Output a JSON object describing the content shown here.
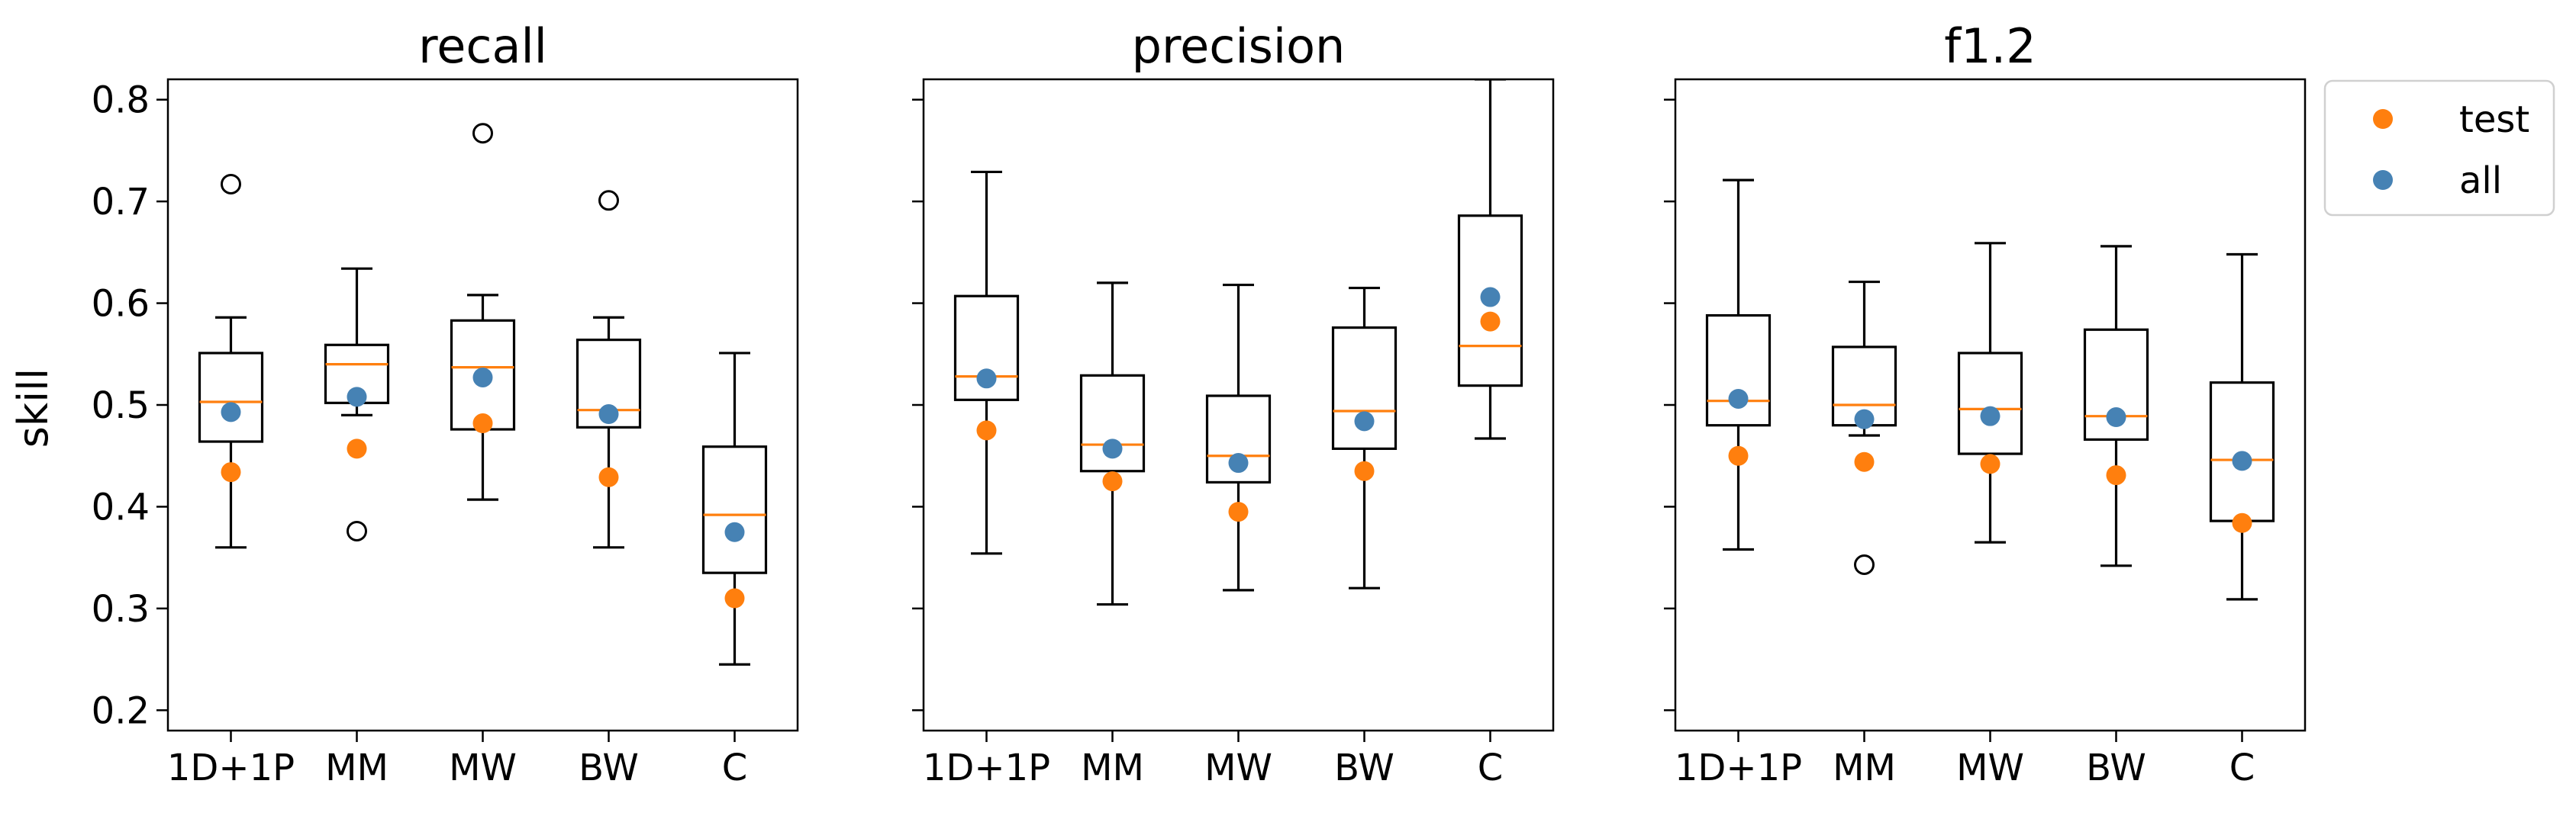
{
  "figure": {
    "ylabel": "skill",
    "legend": {
      "placement": "outside-top-right",
      "entries": [
        {
          "label": "test",
          "color": "#ff7f0e"
        },
        {
          "label": "all",
          "color": "#4682b4"
        }
      ]
    }
  },
  "chart_data": [
    {
      "type": "box",
      "title": "recall",
      "categories": [
        "1D+1P",
        "MM",
        "MW",
        "BW",
        "C"
      ],
      "ylim": [
        0.18,
        0.82
      ],
      "yticks": [
        0.2,
        0.3,
        0.4,
        0.5,
        0.6,
        0.7,
        0.8
      ],
      "boxes": [
        {
          "whislo": 0.36,
          "q1": 0.464,
          "med": 0.503,
          "q3": 0.551,
          "whishi": 0.586,
          "fliers": [
            0.717
          ]
        },
        {
          "whislo": 0.49,
          "q1": 0.502,
          "med": 0.54,
          "q3": 0.559,
          "whishi": 0.634,
          "fliers": [
            0.376
          ]
        },
        {
          "whislo": 0.407,
          "q1": 0.476,
          "med": 0.537,
          "q3": 0.583,
          "whishi": 0.608,
          "fliers": [
            0.767
          ]
        },
        {
          "whislo": 0.36,
          "q1": 0.478,
          "med": 0.495,
          "q3": 0.564,
          "whishi": 0.586,
          "fliers": [
            0.701
          ]
        },
        {
          "whislo": 0.245,
          "q1": 0.335,
          "med": 0.392,
          "q3": 0.459,
          "whishi": 0.551,
          "fliers": []
        }
      ],
      "series": [
        {
          "name": "test",
          "values": [
            0.434,
            0.457,
            0.482,
            0.429,
            0.31
          ]
        },
        {
          "name": "all",
          "values": [
            0.493,
            0.508,
            0.527,
            0.491,
            0.375
          ]
        }
      ]
    },
    {
      "type": "box",
      "title": "precision",
      "categories": [
        "1D+1P",
        "MM",
        "MW",
        "BW",
        "C"
      ],
      "ylim": [
        0.18,
        0.82
      ],
      "yticks": [
        0.2,
        0.3,
        0.4,
        0.5,
        0.6,
        0.7,
        0.8
      ],
      "boxes": [
        {
          "whislo": 0.354,
          "q1": 0.505,
          "med": 0.528,
          "q3": 0.607,
          "whishi": 0.729,
          "fliers": []
        },
        {
          "whislo": 0.304,
          "q1": 0.435,
          "med": 0.461,
          "q3": 0.529,
          "whishi": 0.62,
          "fliers": []
        },
        {
          "whislo": 0.318,
          "q1": 0.424,
          "med": 0.45,
          "q3": 0.509,
          "whishi": 0.618,
          "fliers": []
        },
        {
          "whislo": 0.32,
          "q1": 0.457,
          "med": 0.494,
          "q3": 0.576,
          "whishi": 0.615,
          "fliers": []
        },
        {
          "whislo": 0.467,
          "q1": 0.519,
          "med": 0.558,
          "q3": 0.686,
          "whishi": 0.82,
          "fliers": []
        }
      ],
      "series": [
        {
          "name": "test",
          "values": [
            0.475,
            0.425,
            0.395,
            0.435,
            0.582
          ]
        },
        {
          "name": "all",
          "values": [
            0.526,
            0.457,
            0.443,
            0.484,
            0.606
          ]
        }
      ]
    },
    {
      "type": "box",
      "title": "f1.2",
      "categories": [
        "1D+1P",
        "MM",
        "MW",
        "BW",
        "C"
      ],
      "ylim": [
        0.18,
        0.82
      ],
      "yticks": [
        0.2,
        0.3,
        0.4,
        0.5,
        0.6,
        0.7,
        0.8
      ],
      "boxes": [
        {
          "whislo": 0.358,
          "q1": 0.48,
          "med": 0.504,
          "q3": 0.588,
          "whishi": 0.721,
          "fliers": []
        },
        {
          "whislo": 0.47,
          "q1": 0.48,
          "med": 0.5,
          "q3": 0.557,
          "whishi": 0.621,
          "fliers": [
            0.343
          ]
        },
        {
          "whislo": 0.365,
          "q1": 0.452,
          "med": 0.496,
          "q3": 0.551,
          "whishi": 0.659,
          "fliers": []
        },
        {
          "whislo": 0.342,
          "q1": 0.466,
          "med": 0.489,
          "q3": 0.574,
          "whishi": 0.656,
          "fliers": []
        },
        {
          "whislo": 0.309,
          "q1": 0.386,
          "med": 0.446,
          "q3": 0.522,
          "whishi": 0.648,
          "fliers": []
        }
      ],
      "series": [
        {
          "name": "test",
          "values": [
            0.45,
            0.444,
            0.442,
            0.431,
            0.384
          ]
        },
        {
          "name": "all",
          "values": [
            0.506,
            0.486,
            0.489,
            0.488,
            0.445
          ]
        }
      ]
    }
  ]
}
